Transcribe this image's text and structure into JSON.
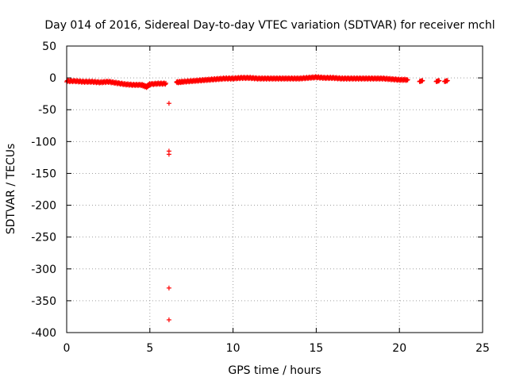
{
  "chart_data": {
    "type": "scatter",
    "title": "Day 014 of 2016, Sidereal Day-to-day VTEC variation (SDTVAR) for receiver mchl",
    "xlabel": "GPS time / hours",
    "ylabel": "SDTVAR / TECUs",
    "xlim": [
      0,
      25
    ],
    "ylim": [
      -400,
      50
    ],
    "xticks": [
      0,
      5,
      10,
      15,
      20,
      25
    ],
    "yticks": [
      50,
      0,
      -50,
      -100,
      -150,
      -200,
      -250,
      -300,
      -350,
      -400
    ],
    "grid": true,
    "marker": "plus",
    "color": "#ff0000",
    "series": [
      {
        "band": [
          [
            0.0,
            -5
          ],
          [
            0.5,
            -5
          ],
          [
            1.0,
            -6
          ],
          [
            1.5,
            -6
          ],
          [
            2.0,
            -7
          ],
          [
            2.5,
            -6
          ],
          [
            3.0,
            -8
          ],
          [
            3.5,
            -10
          ],
          [
            4.0,
            -11
          ],
          [
            4.5,
            -11
          ],
          [
            4.8,
            -14
          ],
          [
            5.0,
            -10
          ],
          [
            5.5,
            -9
          ],
          [
            6.0,
            -9
          ],
          [
            6.6,
            -7
          ],
          [
            7.0,
            -6
          ],
          [
            7.5,
            -5
          ],
          [
            8.0,
            -4
          ],
          [
            8.5,
            -3
          ],
          [
            9.0,
            -2
          ],
          [
            9.5,
            -1
          ],
          [
            10.0,
            -1
          ],
          [
            10.5,
            0
          ],
          [
            11.0,
            0
          ],
          [
            11.5,
            -1
          ],
          [
            12.0,
            -1
          ],
          [
            12.5,
            -1
          ],
          [
            13.0,
            -1
          ],
          [
            13.5,
            -1
          ],
          [
            14.0,
            -1
          ],
          [
            14.5,
            0
          ],
          [
            15.0,
            1
          ],
          [
            15.5,
            0
          ],
          [
            16.0,
            0
          ],
          [
            16.5,
            -1
          ],
          [
            17.0,
            -1
          ],
          [
            17.5,
            -1
          ],
          [
            18.0,
            -1
          ],
          [
            18.5,
            -1
          ],
          [
            19.0,
            -1
          ],
          [
            19.5,
            -2
          ],
          [
            20.0,
            -3
          ],
          [
            20.5,
            -3
          ]
        ],
        "clusters": [
          [
            21.3,
            -5
          ],
          [
            22.3,
            -5
          ],
          [
            22.8,
            -5
          ]
        ],
        "outliers": [
          [
            6.15,
            -40
          ],
          [
            6.15,
            -115
          ],
          [
            6.15,
            -120
          ],
          [
            6.15,
            -330
          ],
          [
            6.15,
            -380
          ]
        ]
      }
    ]
  }
}
